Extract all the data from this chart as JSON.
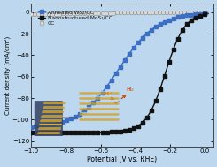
{
  "title": "",
  "xlabel": "Potential (V vs. RHE)",
  "ylabel": "Current density (mA/cm²)",
  "xlim": [
    -1.0,
    0.05
  ],
  "ylim": [
    -125,
    8
  ],
  "background_color": "#bdd8ee",
  "plot_bg_color": "#bdd8ee",
  "legend_entries": [
    "Annealed WS₂/CC",
    "Nanostructured MoS₂/CC",
    "CC"
  ],
  "ws2_color": "#3a6fc4",
  "mos2_color": "#111111",
  "cc_color": "#d8d8d8",
  "cc_edge_color": "#888888",
  "ws2_marker": "s",
  "mos2_marker": "s",
  "cc_marker": "o",
  "xticks": [
    -1.0,
    -0.8,
    -0.6,
    -0.4,
    -0.2,
    0.0
  ],
  "yticks": [
    -120,
    -100,
    -80,
    -60,
    -40,
    -20,
    0
  ],
  "tick_labelsize": 5,
  "xlabel_fontsize": 5.5,
  "ylabel_fontsize": 5.0,
  "legend_fontsize": 4.2,
  "annotation_color": "#cc4400"
}
